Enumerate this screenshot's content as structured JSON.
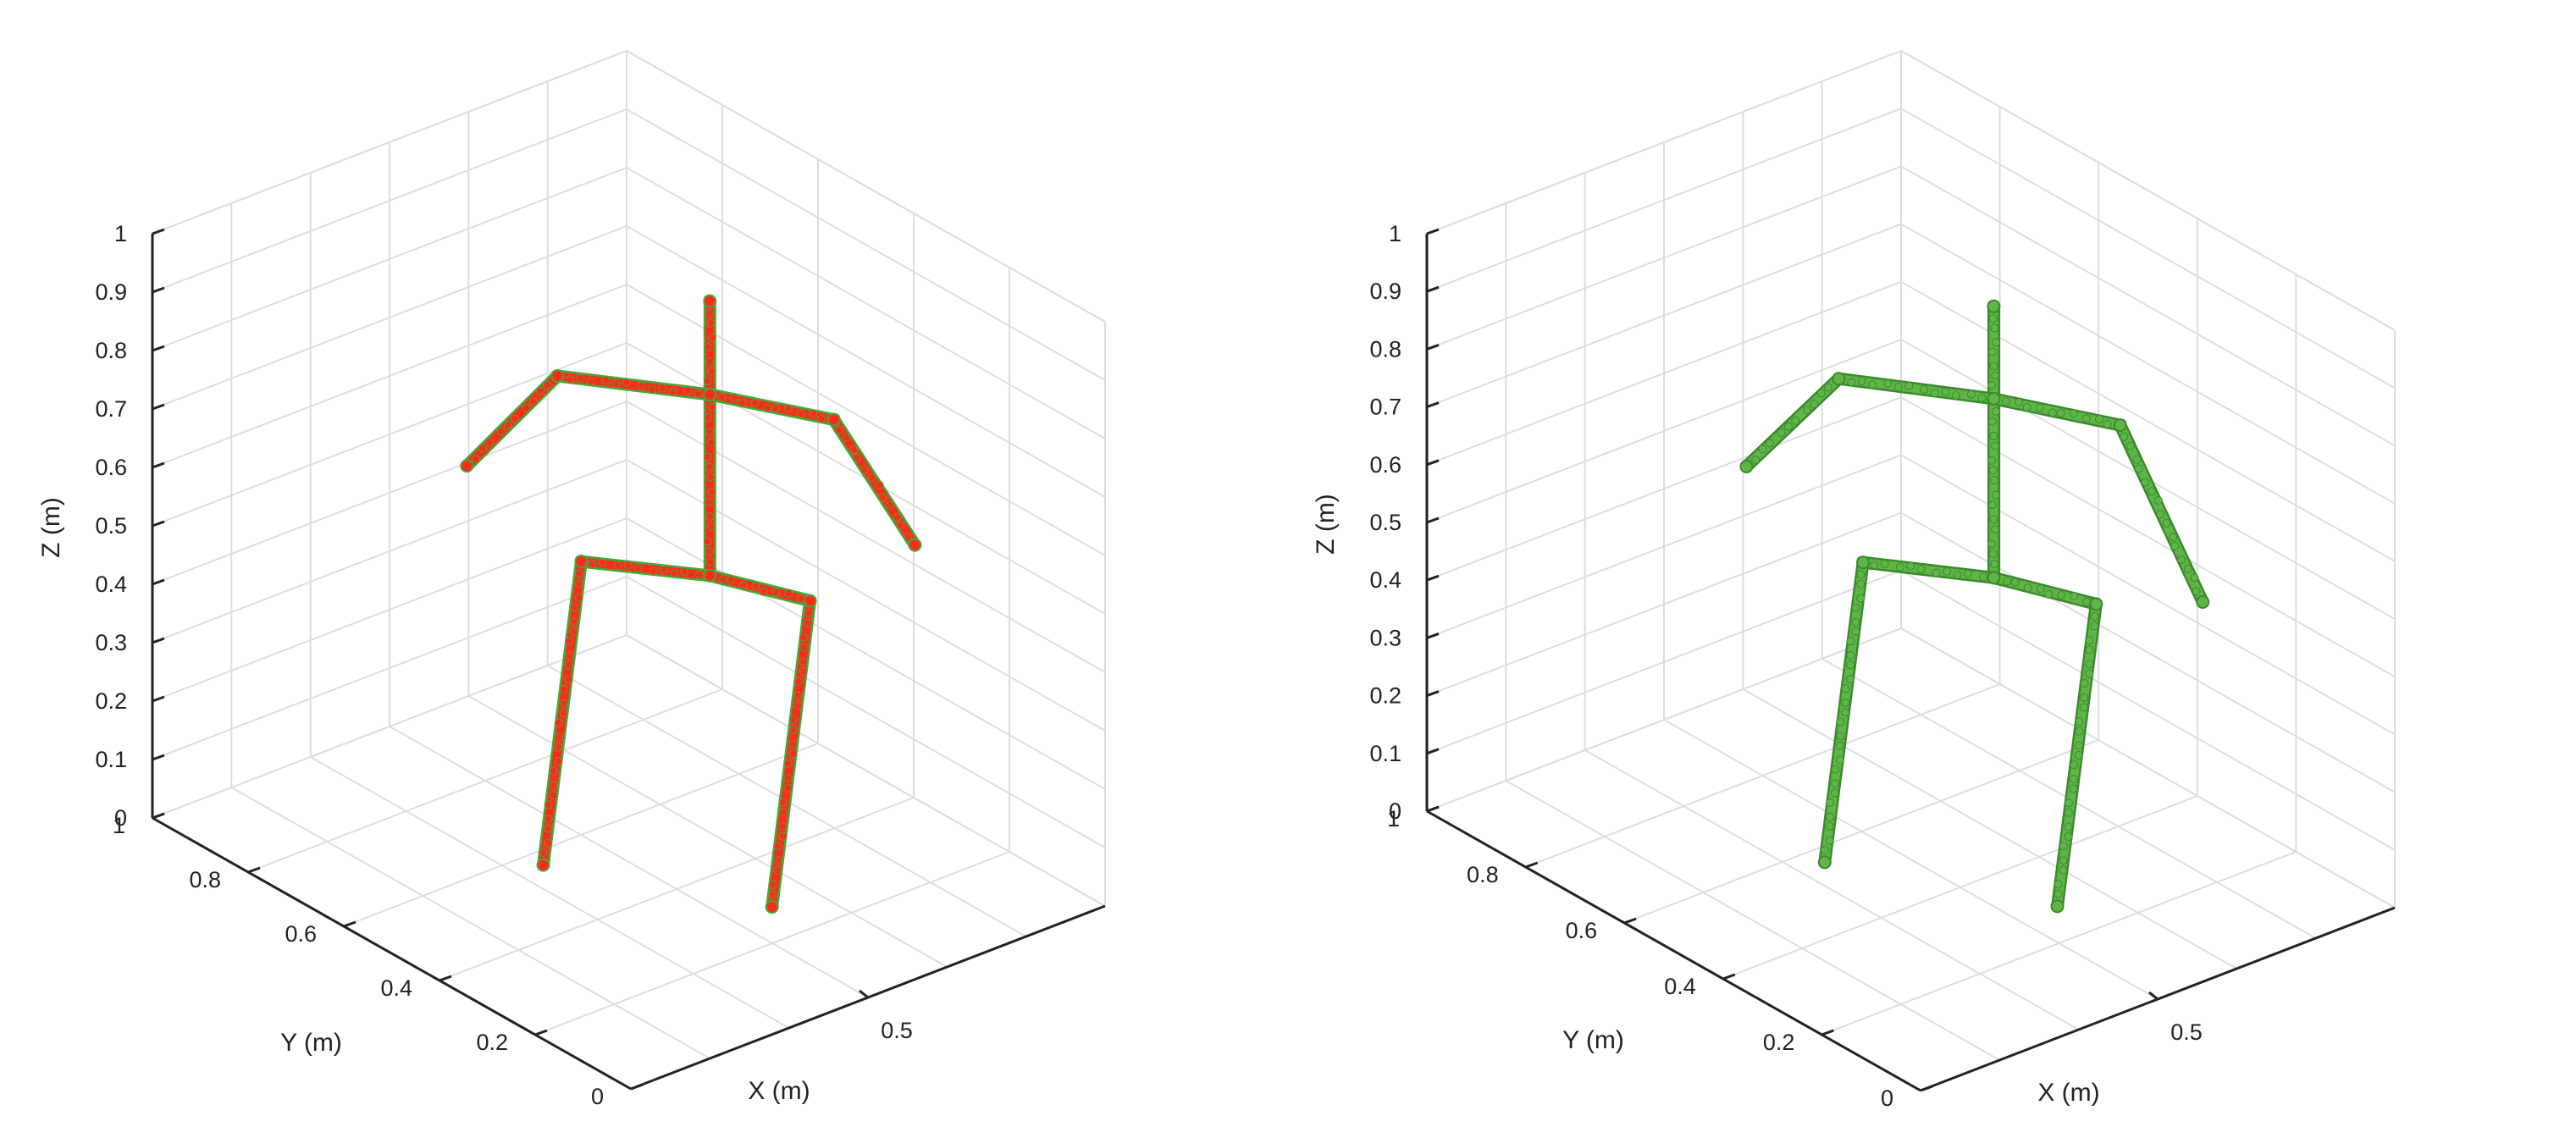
{
  "chart_data": [
    {
      "type": "scatter3d",
      "xlabel": "X (m)",
      "ylabel": "Y (m)",
      "zlabel": "Z (m)",
      "xticks": [
        "0.5"
      ],
      "yticks": [
        "0",
        "0.2",
        "0.4",
        "0.6",
        "0.8",
        "1"
      ],
      "zticks": [
        "0",
        "0.1",
        "0.2",
        "0.3",
        "0.4",
        "0.5",
        "0.6",
        "0.7",
        "0.8",
        "0.9",
        "1"
      ],
      "xlim": [
        0,
        1
      ],
      "ylim": [
        0,
        1
      ],
      "zlim": [
        0,
        1
      ],
      "grid": true,
      "marker_color": "#ff2a1a",
      "marker_edge_color": "#45a838",
      "series": [
        {
          "joints": {
            "head": {
              "x": 0.55,
              "y": 0.38,
              "z": 1.0
            },
            "neck": {
              "x": 0.55,
              "y": 0.38,
              "z": 0.84
            },
            "l_shoulder": {
              "x": 0.4,
              "y": 0.55,
              "z": 0.84
            },
            "l_hand": {
              "x": 0.32,
              "y": 0.66,
              "z": 0.66
            },
            "r_shoulder": {
              "x": 0.65,
              "y": 0.22,
              "z": 0.84
            },
            "r_hand": {
              "x": 0.72,
              "y": 0.12,
              "z": 0.65
            },
            "pelvis": {
              "x": 0.55,
              "y": 0.38,
              "z": 0.53
            },
            "l_hip": {
              "x": 0.42,
              "y": 0.52,
              "z": 0.53
            },
            "l_foot": {
              "x": 0.36,
              "y": 0.54,
              "z": 0.02
            },
            "r_hip": {
              "x": 0.62,
              "y": 0.24,
              "z": 0.53
            },
            "r_foot": {
              "x": 0.58,
              "y": 0.28,
              "z": 0.0
            }
          },
          "bones": [
            [
              "head",
              "neck"
            ],
            [
              "neck",
              "pelvis"
            ],
            [
              "neck",
              "l_shoulder"
            ],
            [
              "l_shoulder",
              "l_hand"
            ],
            [
              "neck",
              "r_shoulder"
            ],
            [
              "r_shoulder",
              "r_hand"
            ],
            [
              "pelvis",
              "l_hip"
            ],
            [
              "l_hip",
              "l_foot"
            ],
            [
              "pelvis",
              "r_hip"
            ],
            [
              "r_hip",
              "r_foot"
            ]
          ]
        }
      ]
    },
    {
      "type": "scatter3d",
      "xlabel": "X (m)",
      "ylabel": "Y (m)",
      "zlabel": "Z (m)",
      "xticks": [
        "0.5"
      ],
      "yticks": [
        "0",
        "0.2",
        "0.4",
        "0.6",
        "0.8",
        "1"
      ],
      "zticks": [
        "0",
        "0.1",
        "0.2",
        "0.3",
        "0.4",
        "0.5",
        "0.6",
        "0.7",
        "0.8",
        "0.9",
        "1"
      ],
      "xlim": [
        0,
        1
      ],
      "ylim": [
        0,
        1
      ],
      "zlim": [
        0,
        1
      ],
      "grid": true,
      "marker_color": "#5fb548",
      "marker_edge_color": "#3b8a2c",
      "series": [
        {
          "joints": {
            "head": {
              "x": 0.55,
              "y": 0.38,
              "z": 1.0
            },
            "neck": {
              "x": 0.55,
              "y": 0.38,
              "z": 0.84
            },
            "l_shoulder": {
              "x": 0.4,
              "y": 0.55,
              "z": 0.84
            },
            "l_hand": {
              "x": 0.32,
              "y": 0.66,
              "z": 0.66
            },
            "r_shoulder": {
              "x": 0.65,
              "y": 0.22,
              "z": 0.84
            },
            "r_hand": {
              "x": 0.72,
              "y": 0.12,
              "z": 0.56
            },
            "pelvis": {
              "x": 0.55,
              "y": 0.38,
              "z": 0.53
            },
            "l_hip": {
              "x": 0.42,
              "y": 0.52,
              "z": 0.53
            },
            "l_foot": {
              "x": 0.36,
              "y": 0.54,
              "z": 0.02
            },
            "r_hip": {
              "x": 0.62,
              "y": 0.24,
              "z": 0.53
            },
            "r_foot": {
              "x": 0.58,
              "y": 0.28,
              "z": 0.0
            }
          },
          "bones": [
            [
              "head",
              "neck"
            ],
            [
              "neck",
              "pelvis"
            ],
            [
              "neck",
              "l_shoulder"
            ],
            [
              "l_shoulder",
              "l_hand"
            ],
            [
              "neck",
              "r_shoulder"
            ],
            [
              "r_shoulder",
              "r_hand"
            ],
            [
              "pelvis",
              "l_hip"
            ],
            [
              "l_hip",
              "l_foot"
            ],
            [
              "pelvis",
              "r_hip"
            ],
            [
              "r_hip",
              "r_foot"
            ]
          ]
        }
      ]
    }
  ]
}
